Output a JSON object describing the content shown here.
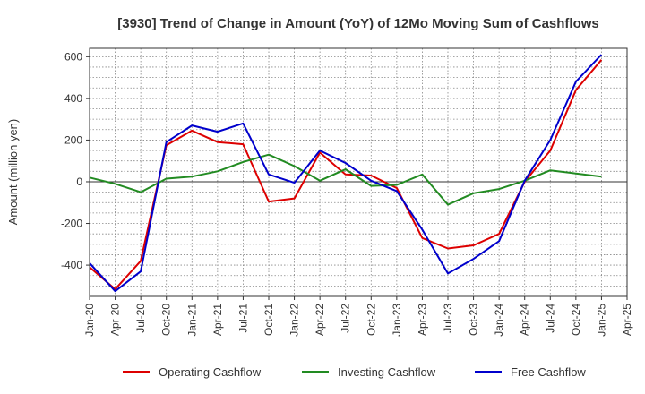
{
  "chart_data": {
    "type": "line",
    "title": "[3930]  Trend of Change in Amount (YoY) of 12Mo Moving Sum of Cashflows",
    "ylabel": "Amount (million yen)",
    "xlabel": "",
    "ylim": [
      -550,
      640
    ],
    "yticks": [
      -400,
      -200,
      0,
      200,
      400,
      600
    ],
    "x_tick_labels": [
      "Jan-20",
      "Apr-20",
      "Jul-20",
      "Oct-20",
      "Jan-21",
      "Apr-21",
      "Jul-21",
      "Oct-21",
      "Jan-22",
      "Apr-22",
      "Jul-22",
      "Oct-22",
      "Jan-23",
      "Apr-23",
      "Jul-23",
      "Oct-23",
      "Jan-24",
      "Apr-24",
      "Jul-24",
      "Oct-24",
      "Jan-25",
      "Apr-25"
    ],
    "grid": true,
    "legend_position": "bottom",
    "series": [
      {
        "name": "Operating Cashflow",
        "color": "#dd0000",
        "values": [
          -410,
          -515,
          -380,
          175,
          245,
          190,
          180,
          -95,
          -80,
          140,
          35,
          30,
          -30,
          -270,
          -320,
          -305,
          -250,
          0,
          150,
          440,
          585
        ]
      },
      {
        "name": "Investing Cashflow",
        "color": "#228b22",
        "values": [
          20,
          -10,
          -50,
          15,
          25,
          50,
          95,
          130,
          75,
          5,
          60,
          -20,
          -15,
          35,
          -110,
          -55,
          -35,
          5,
          55,
          40,
          25
        ]
      },
      {
        "name": "Free Cashflow",
        "color": "#0000cc",
        "values": [
          -390,
          -525,
          -430,
          190,
          270,
          240,
          280,
          35,
          -5,
          150,
          90,
          5,
          -45,
          -230,
          -440,
          -370,
          -285,
          5,
          200,
          480,
          610
        ]
      }
    ]
  }
}
